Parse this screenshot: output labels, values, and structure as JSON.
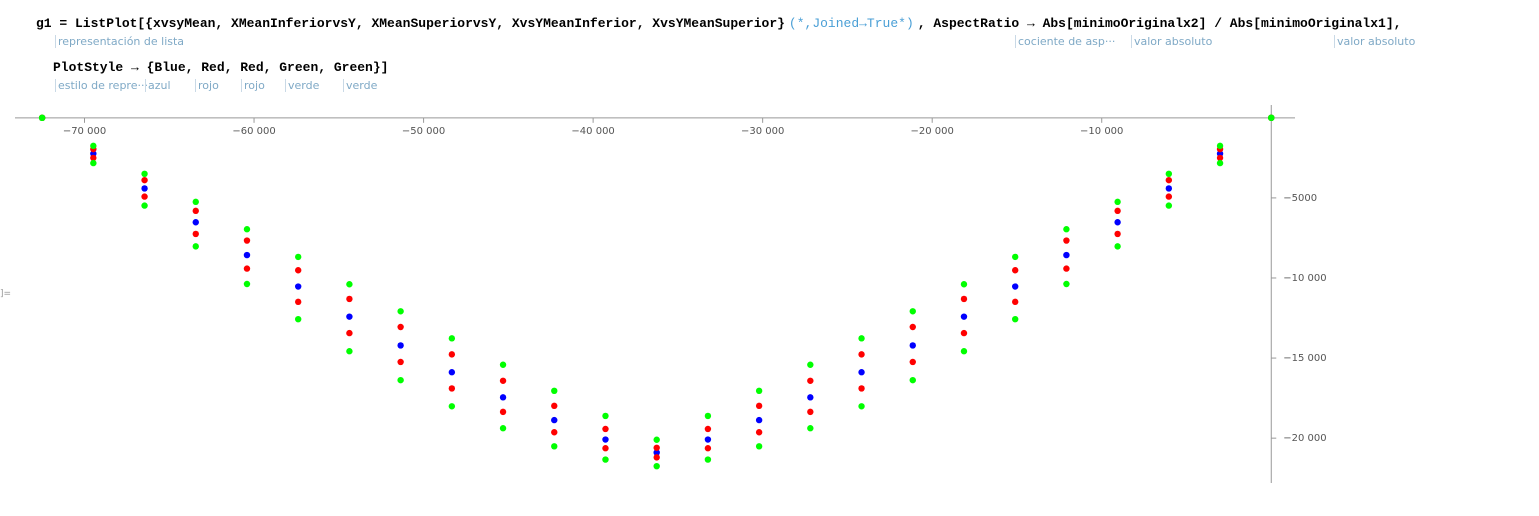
{
  "input": {
    "line1": {
      "code": "g1 = ListPlot[{xvsyMean, XMeanInferiorvsY, XMeanSuperiorvsY, XvsYMeanInferior, XvsYMeanSuperior}",
      "comment": "(*,Joined→True*)",
      "rest": ", AspectRatio → Abs[minimoOriginalx2] / Abs[minimoOriginalx1],"
    },
    "hints1": [
      "representación de lista",
      "cociente de asp···",
      "valor absoluto",
      "valor absoluto"
    ],
    "line2": "PlotStyle → {Blue, Red, Red, Green, Green}]",
    "hints2": [
      "estilo de repre···",
      "azul",
      "rojo",
      "rojo",
      "verde",
      "verde"
    ]
  },
  "output_label": "]=",
  "chart_data": {
    "type": "scatter",
    "xlim": [
      -74100,
      1400
    ],
    "ylim": [
      -22800,
      800
    ],
    "xticks": [
      {
        "value": -70000,
        "label": "−70 000"
      },
      {
        "value": -60000,
        "label": "−60 000"
      },
      {
        "value": -50000,
        "label": "−50 000"
      },
      {
        "value": -40000,
        "label": "−40 000"
      },
      {
        "value": -30000,
        "label": "−30 000"
      },
      {
        "value": -20000,
        "label": "−20 000"
      },
      {
        "value": -10000,
        "label": "−10 000"
      }
    ],
    "yticks": [
      {
        "value": -5000,
        "label": "−5000"
      },
      {
        "value": -10000,
        "label": "−10 000"
      },
      {
        "value": -15000,
        "label": "−15 000"
      },
      {
        "value": -20000,
        "label": "−20 000"
      }
    ],
    "x": [
      -72500,
      -69479,
      -66458,
      -63438,
      -60417,
      -57396,
      -54375,
      -51354,
      -48333,
      -45313,
      -42292,
      -39271,
      -36250,
      -33229,
      -30208,
      -27188,
      -24167,
      -21146,
      -18125,
      -15104,
      -12083,
      -9063,
      -6042,
      -3021,
      0
    ],
    "series": [
      {
        "color": "#0000ff",
        "values": [
          0,
          -2236,
          -4410,
          -6521,
          -8569,
          -10534,
          -12415,
          -14212,
          -15884,
          -17452,
          -18873,
          -20085,
          -20900,
          -20085,
          -18873,
          -17452,
          -15884,
          -14212,
          -12415,
          -10534,
          -8569,
          -6521,
          -4410,
          -2236,
          0
        ]
      },
      {
        "color": "#ff0000",
        "values": [
          0,
          -1957,
          -3893,
          -5809,
          -7663,
          -9517,
          -11309,
          -13060,
          -14770,
          -16418,
          -17984,
          -19426,
          -20600,
          -19426,
          -17984,
          -16418,
          -14770,
          -13060,
          -11309,
          -9517,
          -7663,
          -5809,
          -3893,
          -1957,
          0
        ]
      },
      {
        "color": "#ff0000",
        "values": [
          0,
          -2502,
          -4918,
          -7250,
          -9413,
          -11490,
          -13441,
          -15243,
          -16896,
          -18359,
          -19631,
          -20628,
          -21200,
          -20628,
          -19631,
          -18359,
          -16896,
          -15243,
          -13441,
          -11490,
          -9413,
          -7250,
          -4918,
          -2502,
          0
        ]
      },
      {
        "color": "#00ff00",
        "values": [
          0,
          -1749,
          -3497,
          -5246,
          -6955,
          -8683,
          -10392,
          -12080,
          -13769,
          -15417,
          -17045,
          -18613,
          -20100,
          -18613,
          -17045,
          -15417,
          -13769,
          -12080,
          -10392,
          -8683,
          -6955,
          -5246,
          -3497,
          -1749,
          0
        ]
      },
      {
        "color": "#00ff00",
        "values": [
          0,
          -2828,
          -5481,
          -8026,
          -10375,
          -12572,
          -14573,
          -16378,
          -18009,
          -19379,
          -20510,
          -21337,
          -21750,
          -21337,
          -20510,
          -19379,
          -18009,
          -16378,
          -14573,
          -12572,
          -10375,
          -8026,
          -5481,
          -2828,
          0
        ]
      }
    ]
  }
}
